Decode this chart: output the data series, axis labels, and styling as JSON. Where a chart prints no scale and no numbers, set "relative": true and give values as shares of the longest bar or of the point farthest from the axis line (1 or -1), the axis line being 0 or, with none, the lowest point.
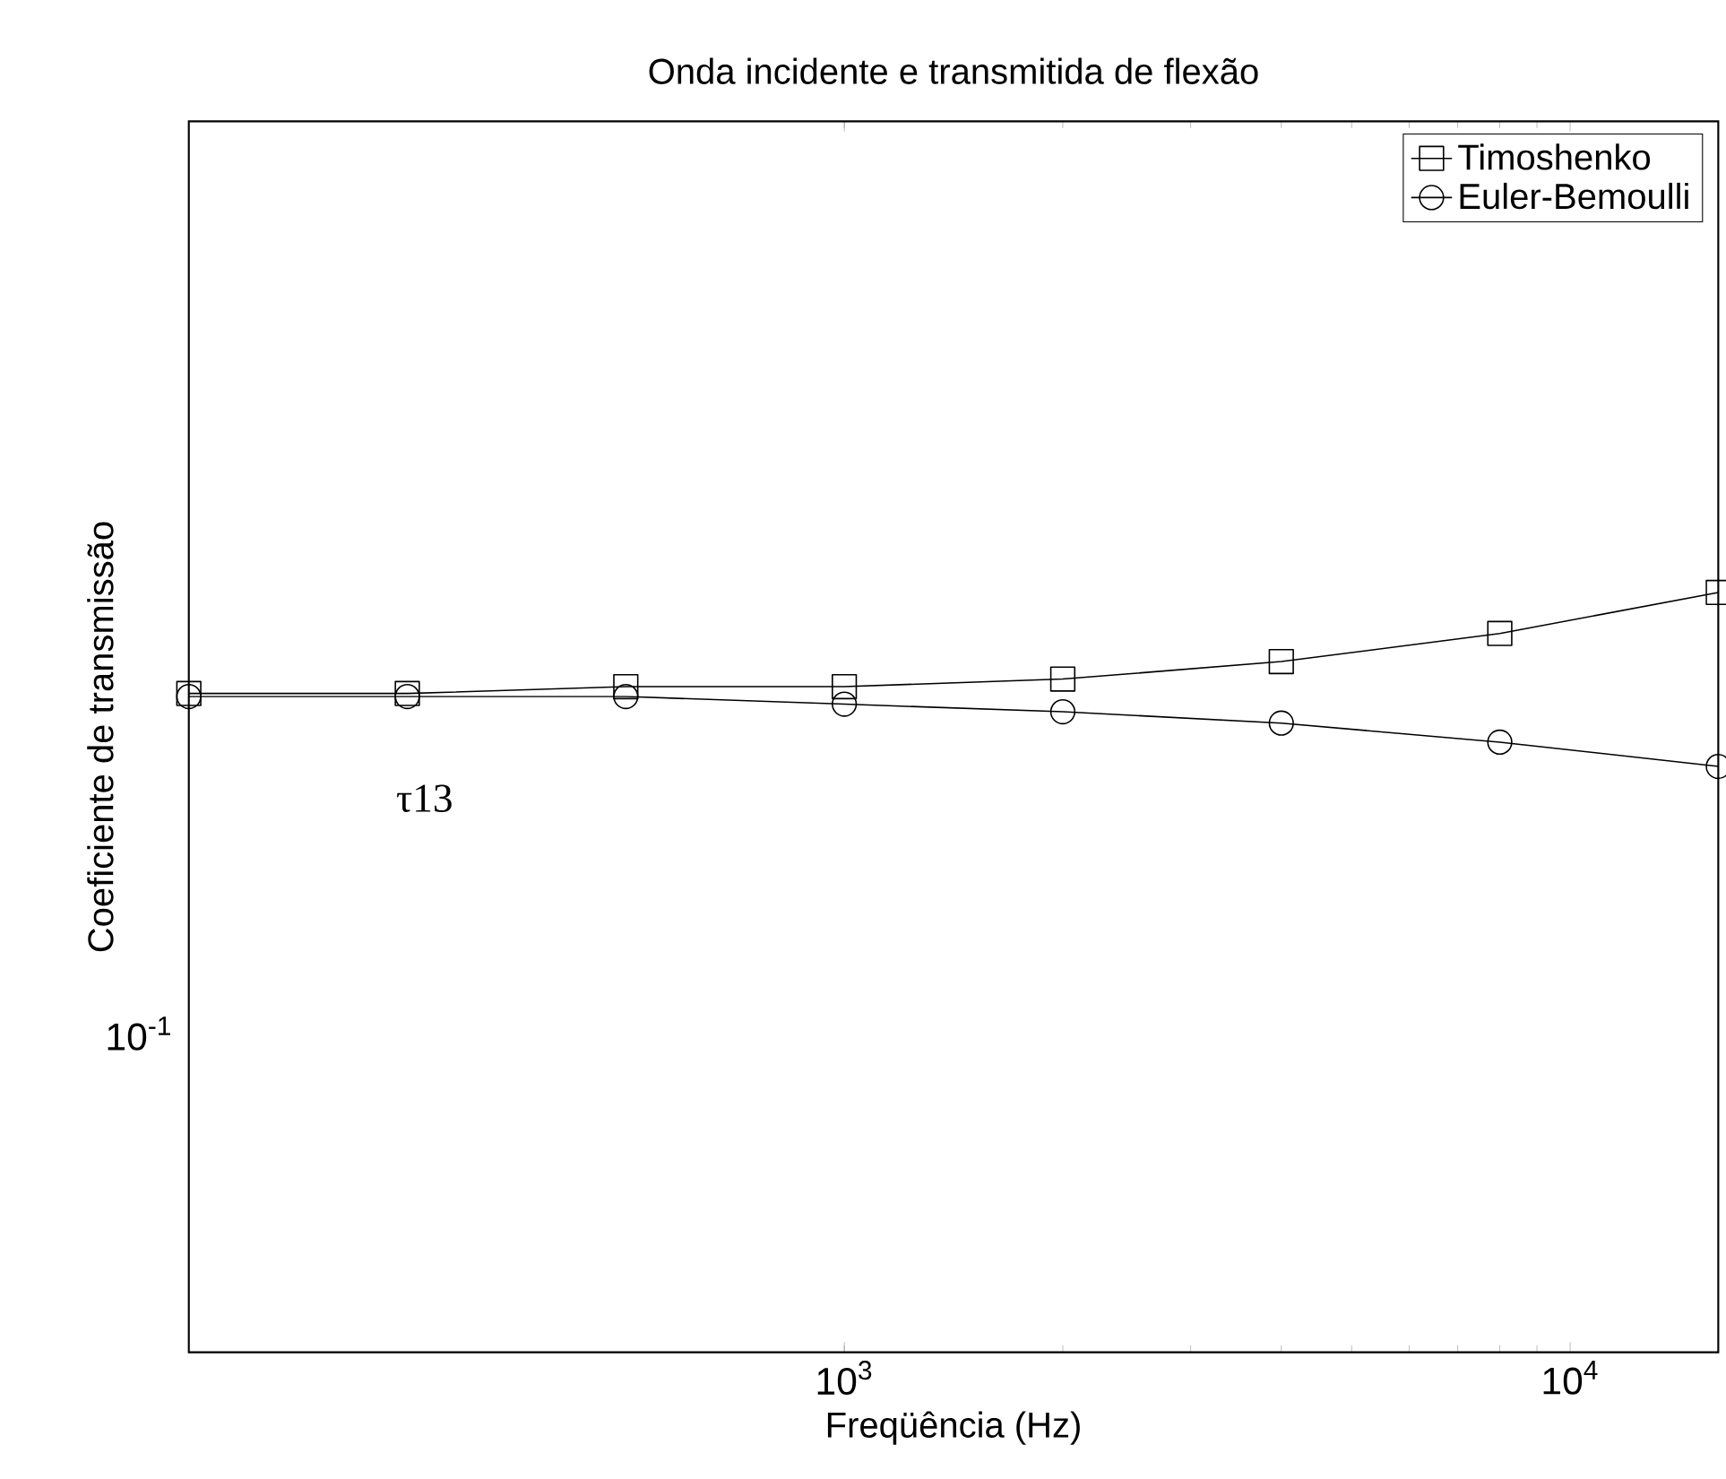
{
  "chart_data": {
    "type": "line",
    "title": "Onda incidente e transmitida de flexão",
    "xlabel": "Freqüência (Hz)",
    "ylabel": "Coeficiente de transmissão",
    "x": [
      125,
      250,
      500,
      1000,
      2000,
      4000,
      8000,
      16000
    ],
    "series": [
      {
        "name": "Timoshenko",
        "color": "#000000",
        "marker": "square",
        "values": [
          0.867,
          0.867,
          0.876,
          0.876,
          0.886,
          0.909,
          0.946,
          1
        ]
      },
      {
        "name": "Euler-Bemoulli",
        "color": "#000000",
        "marker": "circle",
        "values": [
          0.863,
          0.863,
          0.863,
          0.853,
          0.843,
          0.828,
          0.803,
          0.771
        ]
      }
    ],
    "relative": true,
    "log": "x",
    "xlim": [
      125,
      16000
    ],
    "xticks": [
      {
        "value": 1000,
        "label": "10$^{3}$"
      },
      {
        "value": 10000,
        "label": "10$^{4}$"
      }
    ],
    "annotations": [
      "τ13",
      "10$^{-1}$"
    ],
    "legend": "top right",
    "line_style": "solid"
  }
}
